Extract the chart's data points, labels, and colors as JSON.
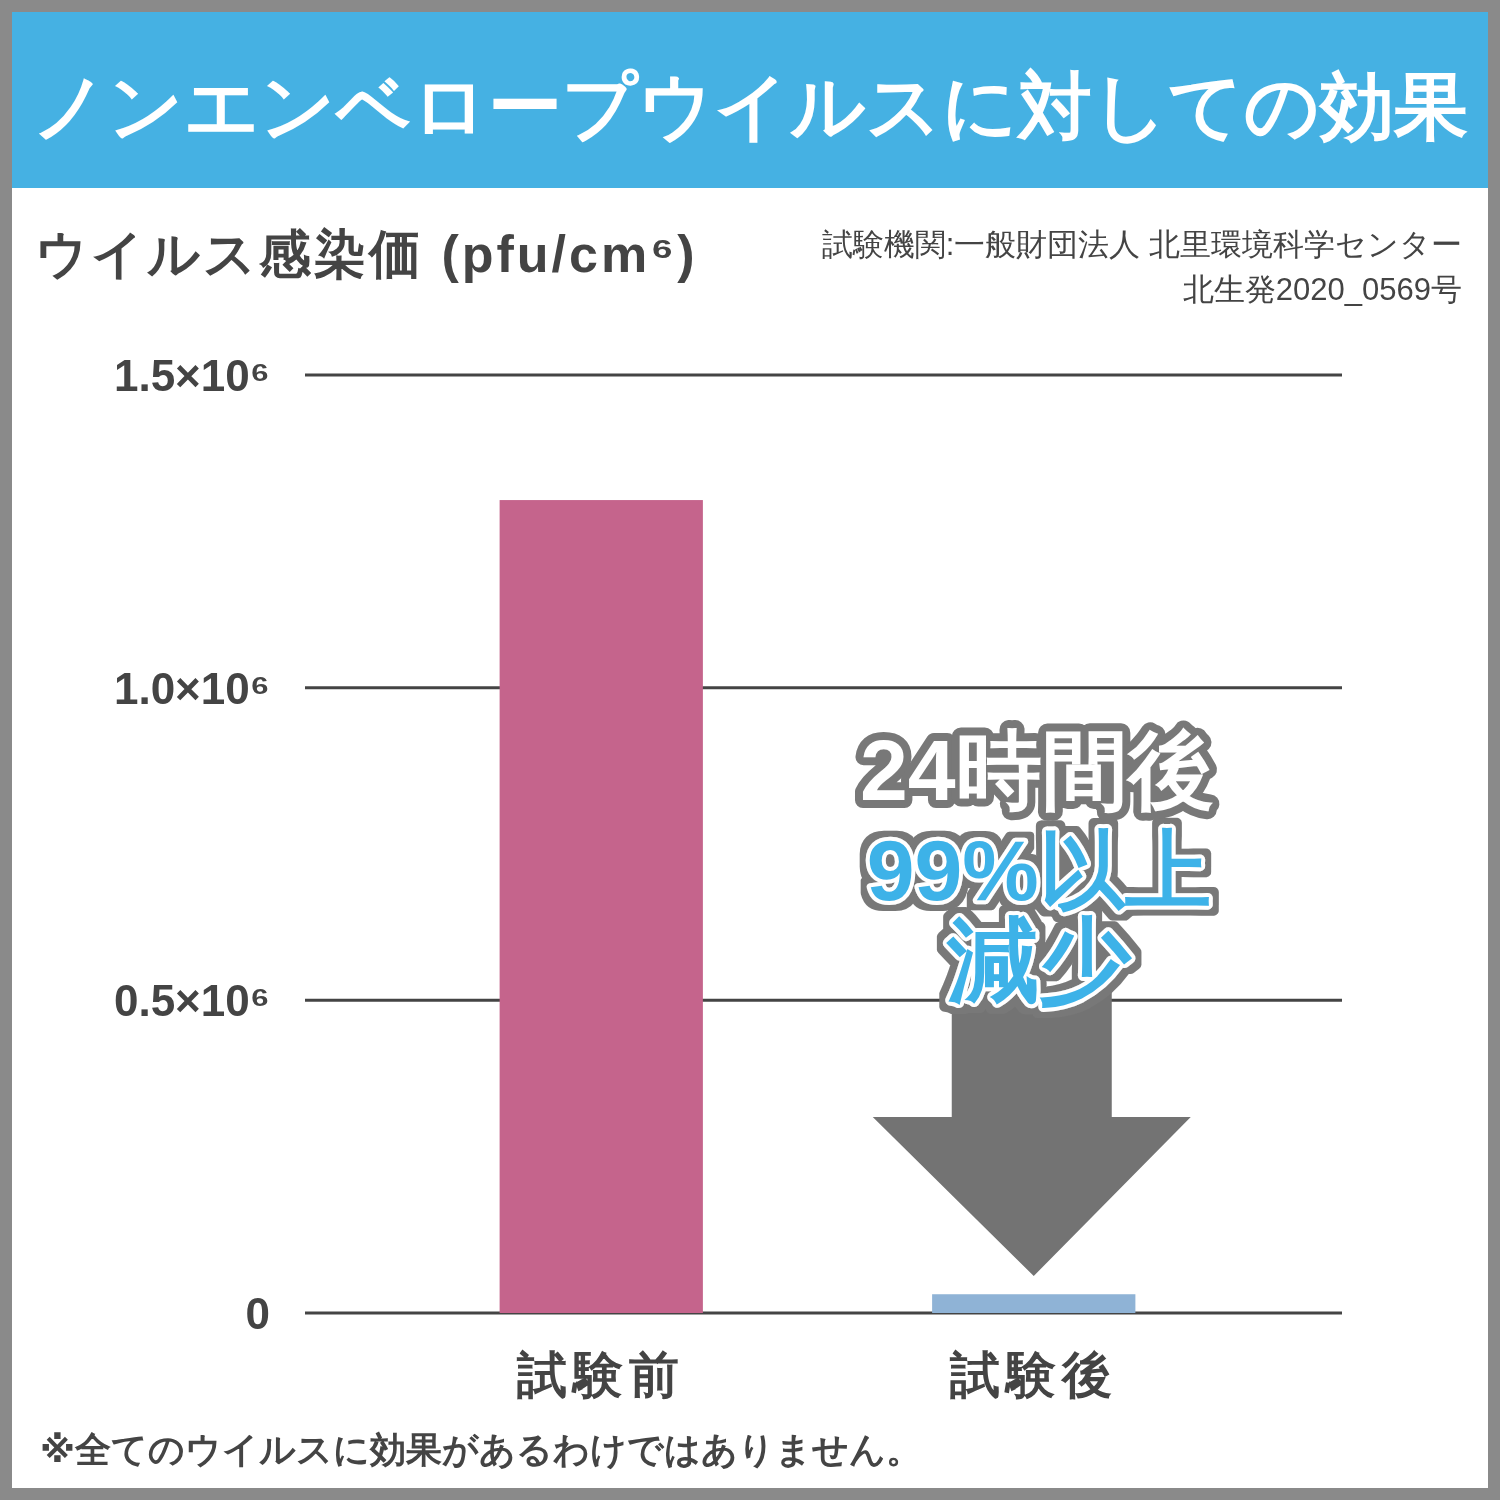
{
  "chart_data": {
    "type": "bar",
    "title": "ノンエンベロープウイルスに対しての効果",
    "ylabel": "ウイルス感染価 (pfu/cm⁶)",
    "categories": [
      "試験前",
      "試験後"
    ],
    "values": [
      1300000,
      30000
    ],
    "colors": [
      "#c5648c",
      "#8fb3d6"
    ],
    "ylim": [
      0,
      1500000
    ],
    "yticks": [
      0,
      {
        "value": 500000,
        "label": "0.5×10⁶"
      },
      {
        "value": 1000000,
        "label": "1.0×10⁶"
      },
      {
        "value": 1500000,
        "label": "1.5×10⁶"
      }
    ],
    "grid": "y",
    "annotations": [
      "試験機関:一般財団法人 北里環境科学センター",
      "北生発2020_0569号",
      "24時間後",
      "99%以上",
      "減少",
      "※全てのウイルスに効果があるわけではありません。"
    ]
  }
}
